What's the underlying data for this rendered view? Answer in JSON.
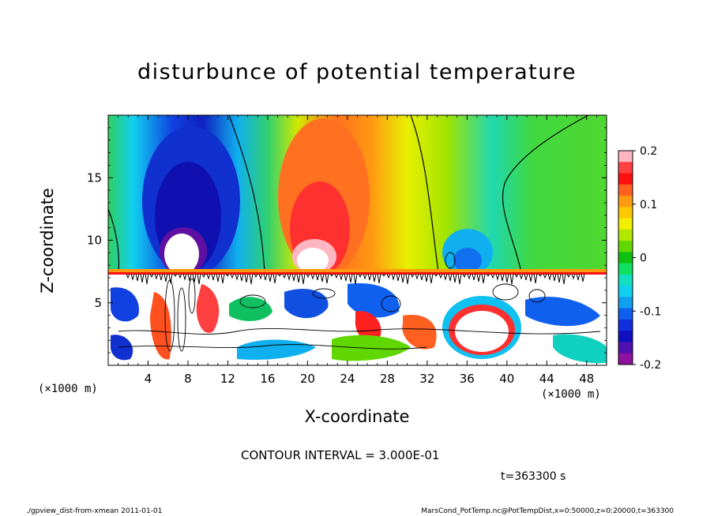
{
  "chart_data": {
    "type": "heatmap",
    "title": "disturbunce of potential temperature",
    "xlabel": "X-coordinate",
    "ylabel": "Z-coordinate",
    "x_unit_label": "(×1000 m)",
    "xlim": [
      0,
      50
    ],
    "ylim": [
      0,
      20
    ],
    "x_ticks": [
      4,
      8,
      12,
      16,
      20,
      24,
      28,
      32,
      36,
      40,
      44,
      48
    ],
    "y_ticks": [
      5,
      10,
      15
    ],
    "colorbar": {
      "vmin": -0.2,
      "vmax": 0.2,
      "ticks": [
        "0.2",
        "0.1",
        "0",
        "-0.1",
        "-0.2"
      ],
      "colors": [
        "#ffb6c1",
        "#ff4040",
        "#ff1010",
        "#ff6020",
        "#ff9a10",
        "#ffc800",
        "#f0f000",
        "#b0e800",
        "#60d800",
        "#10c010",
        "#10e060",
        "#10e0c0",
        "#10d0f0",
        "#10a0f0",
        "#1060f0",
        "#1030e0",
        "#1010c0",
        "#5010b0",
        "#9010a0"
      ]
    },
    "contour_interval": "CONTOUR INTERVAL = 3.000E-01",
    "time": "t=363300 s"
  },
  "footer": {
    "left": "./gpview_dist-from-xmean   2011-01-01",
    "right": "MarsCond_PotTemp.nc@PotTempDist,x=0:50000,z=0:20000,t=363300"
  }
}
